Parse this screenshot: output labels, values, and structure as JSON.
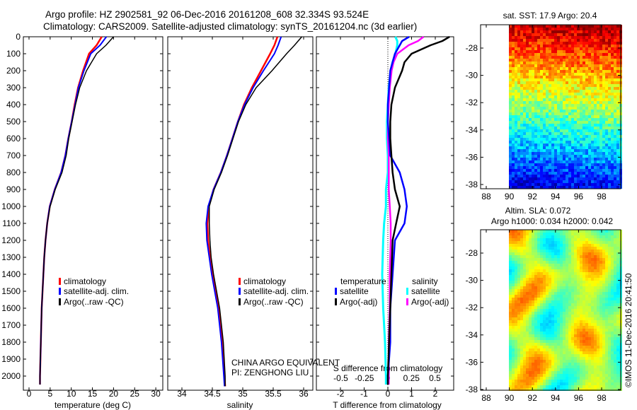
{
  "header": {
    "title_line1": "Argo profile: HZ 2902581_92 06-Dec-2016 20161208_608 32.334S 93.524E",
    "title_line2": "Climatology: CARS2009. Satellite-adjusted climatology: synTS_20161204.nc (3d earlier)"
  },
  "annotation": {
    "line1": "CHINA ARGO EQUIVALENT",
    "line2": "PI: ZENGHONG LIU",
    "credit": "©IMOS 11-Dec-2016 20:41:50"
  },
  "colors": {
    "climatology": "#ff0000",
    "satellite": "#0000ff",
    "argo": "#000000",
    "s_satellite": "#00ffff",
    "s_argo": "#ff00ff"
  },
  "chart_data": [
    {
      "type": "line",
      "name": "temperature",
      "xlabel": "temperature (deg C)",
      "ylabel": "",
      "xlim": [
        -2,
        31
      ],
      "ylim": [
        2100,
        0
      ],
      "xticks": [
        "0",
        "5",
        "10",
        "15",
        "20",
        "25",
        "30"
      ],
      "yticks": [
        "0",
        "100",
        "200",
        "300",
        "400",
        "500",
        "600",
        "700",
        "800",
        "900",
        "1000",
        "1100",
        "1200",
        "1300",
        "1400",
        "1500",
        "1600",
        "1700",
        "1800",
        "1900",
        "2000"
      ],
      "legend": [
        "climatology",
        "satellite-adj. clim.",
        "Argo(..raw -QC)"
      ],
      "depth": [
        0,
        50,
        100,
        200,
        300,
        400,
        500,
        600,
        700,
        800,
        900,
        1000,
        1100,
        1200,
        1300,
        1400,
        1500,
        1600,
        1800,
        2000,
        2050
      ],
      "series": [
        {
          "name": "climatology",
          "values": [
            17.2,
            16.0,
            14.2,
            12.8,
            11.6,
            10.8,
            10.1,
            9.3,
            8.6,
            7.6,
            6.1,
            4.9,
            4.3,
            3.9,
            3.6,
            3.4,
            3.2,
            3.0,
            2.8,
            2.6,
            2.6
          ]
        },
        {
          "name": "satellite-adj. clim.",
          "values": [
            18.3,
            16.8,
            14.6,
            13.0,
            11.7,
            10.9,
            10.1,
            9.3,
            8.6,
            7.6,
            6.1,
            4.9,
            4.3,
            3.9,
            3.6,
            3.4,
            3.2,
            3.0,
            2.8,
            2.6,
            2.6
          ]
        },
        {
          "name": "Argo(..raw -QC)",
          "values": [
            20.0,
            18.2,
            16.0,
            13.6,
            12.0,
            11.0,
            10.2,
            9.4,
            8.8,
            7.8,
            6.2,
            5.0,
            4.3,
            3.9,
            3.6,
            3.4,
            3.2,
            3.0,
            2.8,
            2.6,
            2.6
          ]
        }
      ]
    },
    {
      "type": "line",
      "name": "salinity",
      "xlabel": "salinity",
      "xlim": [
        33.75,
        36.05
      ],
      "ylim": [
        2100,
        0
      ],
      "xticks": [
        "34",
        "34.5",
        "35",
        "35.5",
        "36"
      ],
      "legend": [
        "climatology",
        "satellite-adj. clim.",
        "Argo(..raw -QC)"
      ],
      "depth": [
        0,
        50,
        100,
        200,
        300,
        400,
        500,
        600,
        700,
        800,
        900,
        1000,
        1100,
        1200,
        1300,
        1400,
        1500,
        1600,
        1800,
        2000,
        2060
      ],
      "series": [
        {
          "name": "climatology",
          "values": [
            35.57,
            35.52,
            35.45,
            35.3,
            35.15,
            35.02,
            34.92,
            34.83,
            34.74,
            34.64,
            34.52,
            34.44,
            34.42,
            34.43,
            34.46,
            34.5,
            34.55,
            34.6,
            34.66,
            34.7,
            34.71
          ]
        },
        {
          "name": "satellite-adj. clim.",
          "values": [
            35.63,
            35.58,
            35.52,
            35.34,
            35.17,
            35.03,
            34.92,
            34.83,
            34.74,
            34.64,
            34.52,
            34.43,
            34.4,
            34.41,
            34.45,
            34.49,
            34.54,
            34.59,
            34.65,
            34.69,
            34.7
          ]
        },
        {
          "name": "Argo(..raw -QC)",
          "values": [
            35.97,
            35.85,
            35.72,
            35.48,
            35.22,
            35.05,
            34.93,
            34.84,
            34.75,
            34.65,
            34.53,
            34.45,
            34.45,
            34.46,
            34.48,
            34.52,
            34.57,
            34.62,
            34.68,
            34.71,
            34.71
          ]
        }
      ]
    },
    {
      "type": "line",
      "name": "difference from climatology",
      "xlabel": "T difference from climatology",
      "xlabel_top": "S difference from climatology",
      "xlim": [
        -3,
        3
      ],
      "xlim_s": [
        -0.75,
        0.75
      ],
      "ylim": [
        2100,
        0
      ],
      "xticks": [
        "-2",
        "-1",
        "0",
        "1",
        "2"
      ],
      "xticks_s": [
        "-0.5",
        "-0.25",
        "0",
        "0.25",
        "0.5"
      ],
      "legend_titles": [
        "temperature",
        "salinity"
      ],
      "legend": [
        "satellite",
        "Argo(-adj)",
        "satellite",
        "Argo(-adj)"
      ],
      "depth": [
        0,
        25,
        50,
        100,
        150,
        200,
        300,
        400,
        500,
        600,
        700,
        800,
        900,
        1000,
        1100,
        1200,
        1400,
        1600,
        1800,
        2000,
        2050
      ],
      "series": [
        {
          "name": "T satellite",
          "values": [
            0.9,
            0.6,
            0.5,
            0.3,
            0.2,
            0.1,
            0.05,
            0.0,
            0.0,
            0.05,
            0.1,
            0.5,
            0.7,
            0.8,
            0.7,
            0.3,
            0.2,
            0.1,
            0.1,
            0.0,
            0.0
          ]
        },
        {
          "name": "T Argo(-adj)",
          "values": [
            2.6,
            2.3,
            1.8,
            1.0,
            0.7,
            0.6,
            0.3,
            0.15,
            0.1,
            0.1,
            0.15,
            0.2,
            0.3,
            0.5,
            0.35,
            0.2,
            0.15,
            0.1,
            0.05,
            0.0,
            0.0
          ]
        },
        {
          "name": "S satellite",
          "values": [
            0.08,
            0.1,
            0.1,
            0.08,
            0.05,
            0.03,
            0.01,
            0.0,
            -0.01,
            -0.01,
            0.0,
            0.0,
            -0.02,
            -0.02,
            -0.04,
            -0.05,
            -0.06,
            -0.05,
            -0.03,
            -0.02,
            -0.02
          ]
        },
        {
          "name": "S Argo(-adj)",
          "values": [
            0.38,
            0.32,
            0.22,
            0.1,
            0.06,
            0.04,
            0.02,
            0.01,
            0.0,
            0.0,
            0.01,
            0.01,
            0.01,
            0.02,
            0.03,
            0.03,
            0.02,
            0.02,
            0.01,
            0.01,
            0.01
          ]
        }
      ]
    },
    {
      "type": "heatmap",
      "name": "sst map",
      "title": "sat. SST: 17.9 Argo: 20.4",
      "xlim": [
        86.7,
        99.5
      ],
      "ylim": [
        -38.3,
        -26.3
      ],
      "xticks": [
        "88",
        "90",
        "92",
        "94",
        "96",
        "98"
      ],
      "yticks": [
        "-28",
        "-30",
        "-32",
        "-34",
        "-36",
        "-38"
      ]
    },
    {
      "type": "heatmap",
      "name": "sla map",
      "title_line1": "Altim. SLA: 0.072",
      "title_line2": "Argo h1000: 0.034 h2000: 0.042",
      "xlim": [
        86.7,
        99.5
      ],
      "ylim": [
        -38.3,
        -26.3
      ],
      "xticks": [
        "88",
        "90",
        "92",
        "94",
        "96",
        "98"
      ],
      "yticks": [
        "-28",
        "-30",
        "-32",
        "-34",
        "-36",
        "-38"
      ]
    }
  ]
}
